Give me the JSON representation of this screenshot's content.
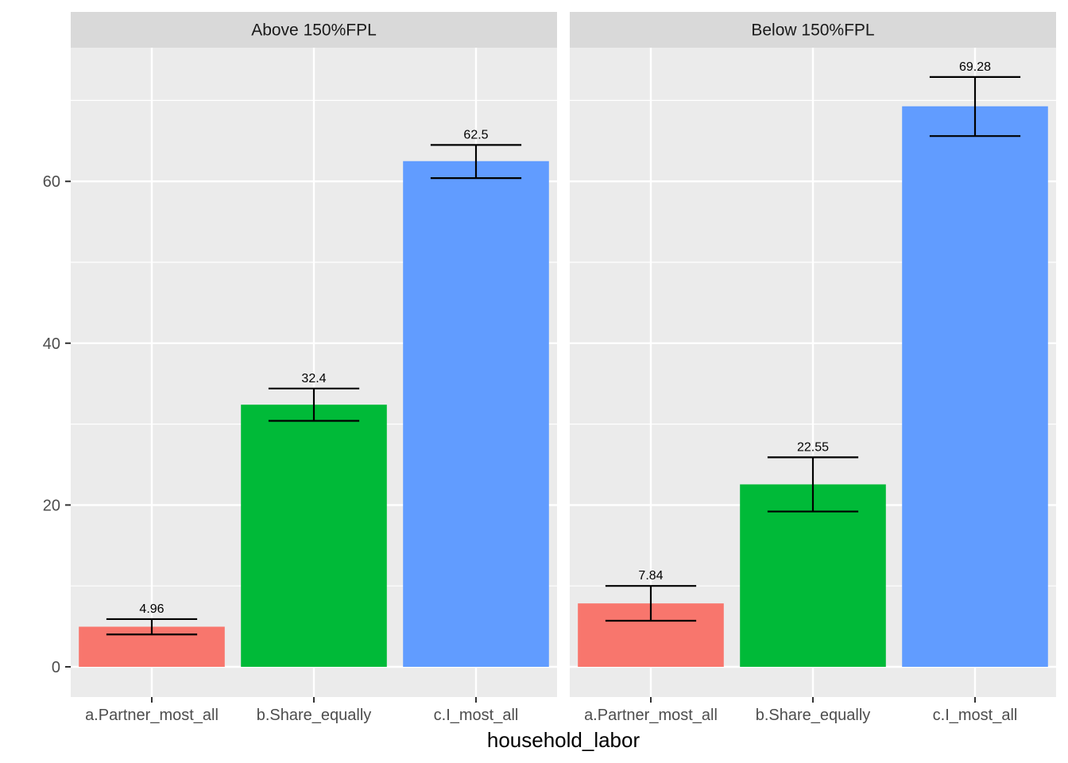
{
  "chart_data": {
    "type": "bar",
    "xlabel": "household_labor",
    "ylabel": "",
    "ylim": [
      -3.46,
      76.2
    ],
    "yticks": [
      0,
      20,
      40,
      60
    ],
    "categories": [
      "a.Partner_most_all",
      "b.Share_equally",
      "c.I_most_all"
    ],
    "colors": [
      "#F8766D",
      "#00BA38",
      "#619CFF"
    ],
    "grid": true,
    "legend": "none",
    "panels": [
      {
        "label": "Above 150%FPL",
        "values": [
          4.96,
          32.4,
          62.5
        ],
        "value_labels": [
          "4.96",
          "32.4",
          "62.5"
        ],
        "error_low": [
          4.0,
          30.4,
          60.4
        ],
        "error_high": [
          5.9,
          34.4,
          64.5
        ]
      },
      {
        "label": "Below 150%FPL",
        "values": [
          7.84,
          22.55,
          69.28
        ],
        "value_labels": [
          "7.84",
          "22.55",
          "69.28"
        ],
        "error_low": [
          5.7,
          19.2,
          65.6
        ],
        "error_high": [
          10.0,
          25.9,
          72.9
        ]
      }
    ]
  }
}
